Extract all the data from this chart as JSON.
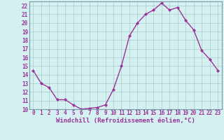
{
  "x": [
    0,
    1,
    2,
    3,
    4,
    5,
    6,
    7,
    8,
    9,
    10,
    11,
    12,
    13,
    14,
    15,
    16,
    17,
    18,
    19,
    20,
    21,
    22,
    23
  ],
  "y": [
    14.5,
    13.0,
    12.5,
    11.1,
    11.1,
    10.5,
    10.0,
    10.1,
    10.2,
    10.5,
    12.3,
    15.0,
    18.5,
    20.0,
    21.0,
    21.5,
    22.3,
    21.5,
    21.8,
    20.3,
    19.2,
    16.8,
    15.8,
    14.5
  ],
  "line_color": "#993399",
  "marker": "D",
  "marker_size": 2,
  "bg_color": "#d4f0f0",
  "grid_color": "#aacccc",
  "xlabel": "Windchill (Refroidissement éolien,°C)",
  "xlabel_color": "#993399",
  "ylim": [
    10,
    22.5
  ],
  "xlim": [
    -0.5,
    23.5
  ],
  "yticks": [
    10,
    11,
    12,
    13,
    14,
    15,
    16,
    17,
    18,
    19,
    20,
    21,
    22
  ],
  "xticks": [
    0,
    1,
    2,
    3,
    4,
    5,
    6,
    7,
    8,
    9,
    10,
    11,
    12,
    13,
    14,
    15,
    16,
    17,
    18,
    19,
    20,
    21,
    22,
    23
  ],
  "tick_label_color": "#993399",
  "tick_label_size": 5.5,
  "xlabel_size": 6.5,
  "line_width": 1.0,
  "spine_color": "#7799aa"
}
